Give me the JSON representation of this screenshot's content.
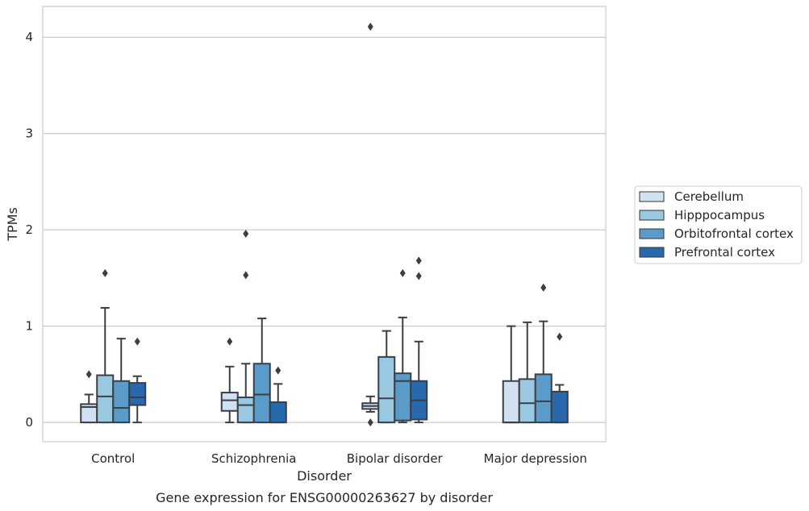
{
  "chart_data": {
    "type": "boxplot",
    "xlabel": "Disorder",
    "ylabel": "TPMs",
    "caption": "Gene expression for ENSG00000263627 by disorder",
    "categories": [
      "Control",
      "Schizophrenia",
      "Bipolar disorder",
      "Major depression"
    ],
    "ylim": [
      -0.2,
      4.32
    ],
    "yticks": [
      0,
      1,
      2,
      3,
      4
    ],
    "grid": "horizontal",
    "legend_position": "right",
    "series": [
      {
        "name": "Cerebellum",
        "color": "#d0e1f2",
        "boxes": [
          {
            "whisker_low": 0.0,
            "q1": 0.0,
            "median": 0.16,
            "q3": 0.19,
            "whisker_high": 0.29,
            "outliers": [
              0.5
            ]
          },
          {
            "whisker_low": 0.0,
            "q1": 0.12,
            "median": 0.23,
            "q3": 0.31,
            "whisker_high": 0.58,
            "outliers": [
              0.84
            ]
          },
          {
            "whisker_low": 0.11,
            "q1": 0.14,
            "median": 0.17,
            "q3": 0.2,
            "whisker_high": 0.27,
            "outliers": [
              0.0,
              4.11
            ]
          },
          {
            "whisker_low": 0.0,
            "q1": 0.0,
            "median": 0.0,
            "q3": 0.43,
            "whisker_high": 1.0,
            "outliers": []
          }
        ]
      },
      {
        "name": "Hipppocampus",
        "color": "#9ac8e0",
        "boxes": [
          {
            "whisker_low": 0.0,
            "q1": 0.0,
            "median": 0.27,
            "q3": 0.49,
            "whisker_high": 1.19,
            "outliers": [
              1.55
            ]
          },
          {
            "whisker_low": 0.0,
            "q1": 0.0,
            "median": 0.18,
            "q3": 0.26,
            "whisker_high": 0.61,
            "outliers": [
              1.53,
              1.96
            ]
          },
          {
            "whisker_low": 0.0,
            "q1": 0.0,
            "median": 0.25,
            "q3": 0.68,
            "whisker_high": 0.95,
            "outliers": []
          },
          {
            "whisker_low": 0.0,
            "q1": 0.0,
            "median": 0.2,
            "q3": 0.45,
            "whisker_high": 1.04,
            "outliers": []
          }
        ]
      },
      {
        "name": "Orbitofrontal cortex",
        "color": "#5a9bc9",
        "boxes": [
          {
            "whisker_low": 0.0,
            "q1": 0.0,
            "median": 0.15,
            "q3": 0.43,
            "whisker_high": 0.87,
            "outliers": []
          },
          {
            "whisker_low": 0.0,
            "q1": 0.0,
            "median": 0.29,
            "q3": 0.61,
            "whisker_high": 1.08,
            "outliers": []
          },
          {
            "whisker_low": 0.0,
            "q1": 0.02,
            "median": 0.43,
            "q3": 0.51,
            "whisker_high": 1.09,
            "outliers": [
              1.55
            ]
          },
          {
            "whisker_low": 0.0,
            "q1": 0.0,
            "median": 0.22,
            "q3": 0.5,
            "whisker_high": 1.05,
            "outliers": [
              1.4
            ]
          }
        ]
      },
      {
        "name": "Prefrontal cortex",
        "color": "#2769ac",
        "boxes": [
          {
            "whisker_low": 0.0,
            "q1": 0.18,
            "median": 0.26,
            "q3": 0.41,
            "whisker_high": 0.48,
            "outliers": [
              0.84
            ]
          },
          {
            "whisker_low": 0.0,
            "q1": 0.0,
            "median": 0.0,
            "q3": 0.21,
            "whisker_high": 0.4,
            "outliers": [
              0.54
            ]
          },
          {
            "whisker_low": 0.0,
            "q1": 0.03,
            "median": 0.23,
            "q3": 0.43,
            "whisker_high": 0.84,
            "outliers": [
              1.52,
              1.68
            ]
          },
          {
            "whisker_low": 0.0,
            "q1": 0.0,
            "median": 0.0,
            "q3": 0.32,
            "whisker_high": 0.39,
            "outliers": [
              0.89
            ]
          }
        ]
      }
    ]
  }
}
